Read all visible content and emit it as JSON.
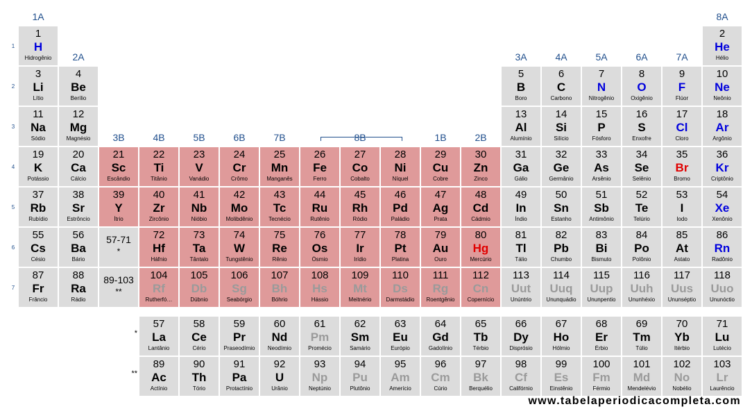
{
  "groups": [
    "1A",
    "2A",
    "3B",
    "4B",
    "5B",
    "6B",
    "7B",
    "8B",
    "1B",
    "2B",
    "3A",
    "4A",
    "5A",
    "6A",
    "7A",
    "8A"
  ],
  "periods": [
    "1",
    "2",
    "3",
    "4",
    "5",
    "6",
    "7"
  ],
  "series_markers": [
    "*",
    "**"
  ],
  "reference_cells": [
    {
      "range": "57-71",
      "marker": "*"
    },
    {
      "range": "89-103",
      "marker": "**"
    }
  ],
  "colors": {
    "transition_metal_bg": "#df9a9a",
    "cell_bg": "#dcdcdc",
    "header_text": "#1f4e8c",
    "gas": "#0000dd",
    "liquid": "#e00000",
    "synthetic": "#9a9a9a",
    "solid": "#000000"
  },
  "website": "www.tabelaperiodicacompleta.com",
  "elements": [
    {
      "n": "1",
      "s": "H",
      "name": "Hidrogênio",
      "p": "gas"
    },
    {
      "n": "2",
      "s": "He",
      "name": "Hélio",
      "p": "gas"
    },
    {
      "n": "3",
      "s": "Li",
      "name": "Lítio",
      "p": "solid"
    },
    {
      "n": "4",
      "s": "Be",
      "name": "Berílio",
      "p": "solid"
    },
    {
      "n": "5",
      "s": "B",
      "name": "Boro",
      "p": "solid"
    },
    {
      "n": "6",
      "s": "C",
      "name": "Carbono",
      "p": "solid"
    },
    {
      "n": "7",
      "s": "N",
      "name": "Nitrogênio",
      "p": "gas"
    },
    {
      "n": "8",
      "s": "O",
      "name": "Oxigênio",
      "p": "gas"
    },
    {
      "n": "9",
      "s": "F",
      "name": "Flúor",
      "p": "gas"
    },
    {
      "n": "10",
      "s": "Ne",
      "name": "Neônio",
      "p": "gas"
    },
    {
      "n": "11",
      "s": "Na",
      "name": "Sódio",
      "p": "solid"
    },
    {
      "n": "12",
      "s": "Mg",
      "name": "Magnésio",
      "p": "solid"
    },
    {
      "n": "13",
      "s": "Al",
      "name": "Alumínio",
      "p": "solid"
    },
    {
      "n": "14",
      "s": "Si",
      "name": "Silício",
      "p": "solid"
    },
    {
      "n": "15",
      "s": "P",
      "name": "Fósforo",
      "p": "solid"
    },
    {
      "n": "16",
      "s": "S",
      "name": "Enxofre",
      "p": "solid"
    },
    {
      "n": "17",
      "s": "Cl",
      "name": "Cloro",
      "p": "gas"
    },
    {
      "n": "18",
      "s": "Ar",
      "name": "Argônio",
      "p": "gas"
    },
    {
      "n": "19",
      "s": "K",
      "name": "Potássio",
      "p": "solid"
    },
    {
      "n": "20",
      "s": "Ca",
      "name": "Cálcio",
      "p": "solid"
    },
    {
      "n": "21",
      "s": "Sc",
      "name": "Escândio",
      "p": "solid"
    },
    {
      "n": "22",
      "s": "Ti",
      "name": "Titânio",
      "p": "solid"
    },
    {
      "n": "23",
      "s": "V",
      "name": "Vanádio",
      "p": "solid"
    },
    {
      "n": "24",
      "s": "Cr",
      "name": "Crômo",
      "p": "solid"
    },
    {
      "n": "25",
      "s": "Mn",
      "name": "Manganês",
      "p": "solid"
    },
    {
      "n": "26",
      "s": "Fe",
      "name": "Ferro",
      "p": "solid"
    },
    {
      "n": "27",
      "s": "Co",
      "name": "Cobalto",
      "p": "solid"
    },
    {
      "n": "28",
      "s": "Ni",
      "name": "Níquel",
      "p": "solid"
    },
    {
      "n": "29",
      "s": "Cu",
      "name": "Cobre",
      "p": "solid"
    },
    {
      "n": "30",
      "s": "Zn",
      "name": "Zinco",
      "p": "solid"
    },
    {
      "n": "31",
      "s": "Ga",
      "name": "Gálio",
      "p": "solid"
    },
    {
      "n": "32",
      "s": "Ge",
      "name": "Germânio",
      "p": "solid"
    },
    {
      "n": "33",
      "s": "As",
      "name": "Arsênio",
      "p": "solid"
    },
    {
      "n": "34",
      "s": "Se",
      "name": "Selênio",
      "p": "solid"
    },
    {
      "n": "35",
      "s": "Br",
      "name": "Bromo",
      "p": "liquid"
    },
    {
      "n": "36",
      "s": "Kr",
      "name": "Criptônio",
      "p": "gas"
    },
    {
      "n": "37",
      "s": "Rb",
      "name": "Rubídio",
      "p": "solid"
    },
    {
      "n": "38",
      "s": "Sr",
      "name": "Estrôncio",
      "p": "solid"
    },
    {
      "n": "39",
      "s": "Y",
      "name": "Ítrio",
      "p": "solid"
    },
    {
      "n": "40",
      "s": "Zr",
      "name": "Zircônio",
      "p": "solid"
    },
    {
      "n": "41",
      "s": "Nb",
      "name": "Nióbio",
      "p": "solid"
    },
    {
      "n": "42",
      "s": "Mo",
      "name": "Molibdênio",
      "p": "solid"
    },
    {
      "n": "43",
      "s": "Tc",
      "name": "Tecnécio",
      "p": "solid"
    },
    {
      "n": "44",
      "s": "Ru",
      "name": "Rutênio",
      "p": "solid"
    },
    {
      "n": "45",
      "s": "Rh",
      "name": "Ródio",
      "p": "solid"
    },
    {
      "n": "46",
      "s": "Pd",
      "name": "Paládio",
      "p": "solid"
    },
    {
      "n": "47",
      "s": "Ag",
      "name": "Prata",
      "p": "solid"
    },
    {
      "n": "48",
      "s": "Cd",
      "name": "Cádmio",
      "p": "solid"
    },
    {
      "n": "49",
      "s": "In",
      "name": "Índio",
      "p": "solid"
    },
    {
      "n": "50",
      "s": "Sn",
      "name": "Estanho",
      "p": "solid"
    },
    {
      "n": "51",
      "s": "Sb",
      "name": "Antimônio",
      "p": "solid"
    },
    {
      "n": "52",
      "s": "Te",
      "name": "Telúrio",
      "p": "solid"
    },
    {
      "n": "53",
      "s": "I",
      "name": "Iodo",
      "p": "solid"
    },
    {
      "n": "54",
      "s": "Xe",
      "name": "Xenônio",
      "p": "gas"
    },
    {
      "n": "55",
      "s": "Cs",
      "name": "Césio",
      "p": "solid"
    },
    {
      "n": "56",
      "s": "Ba",
      "name": "Bário",
      "p": "solid"
    },
    {
      "n": "72",
      "s": "Hf",
      "name": "Háfnio",
      "p": "solid"
    },
    {
      "n": "73",
      "s": "Ta",
      "name": "Tântalo",
      "p": "solid"
    },
    {
      "n": "74",
      "s": "W",
      "name": "Tungstênio",
      "p": "solid"
    },
    {
      "n": "75",
      "s": "Re",
      "name": "Rênio",
      "p": "solid"
    },
    {
      "n": "76",
      "s": "Os",
      "name": "Ósmio",
      "p": "solid"
    },
    {
      "n": "77",
      "s": "Ir",
      "name": "Irídio",
      "p": "solid"
    },
    {
      "n": "78",
      "s": "Pt",
      "name": "Platina",
      "p": "solid"
    },
    {
      "n": "79",
      "s": "Au",
      "name": "Ouro",
      "p": "solid"
    },
    {
      "n": "80",
      "s": "Hg",
      "name": "Mercúrio",
      "p": "liquid"
    },
    {
      "n": "81",
      "s": "Tl",
      "name": "Tálio",
      "p": "solid"
    },
    {
      "n": "82",
      "s": "Pb",
      "name": "Chumbo",
      "p": "solid"
    },
    {
      "n": "83",
      "s": "Bi",
      "name": "Bismuto",
      "p": "solid"
    },
    {
      "n": "84",
      "s": "Po",
      "name": "Polônio",
      "p": "solid"
    },
    {
      "n": "85",
      "s": "At",
      "name": "Astato",
      "p": "solid"
    },
    {
      "n": "86",
      "s": "Rn",
      "name": "Radônio",
      "p": "gas"
    },
    {
      "n": "87",
      "s": "Fr",
      "name": "Frâncio",
      "p": "solid"
    },
    {
      "n": "88",
      "s": "Ra",
      "name": "Rádio",
      "p": "solid"
    },
    {
      "n": "104",
      "s": "Rf",
      "name": "Rutherfó…",
      "p": "synthetic"
    },
    {
      "n": "105",
      "s": "Db",
      "name": "Dúbnio",
      "p": "synthetic"
    },
    {
      "n": "106",
      "s": "Sg",
      "name": "Seabórgio",
      "p": "synthetic"
    },
    {
      "n": "107",
      "s": "Bh",
      "name": "Bóhrio",
      "p": "synthetic"
    },
    {
      "n": "108",
      "s": "Hs",
      "name": "Hássio",
      "p": "synthetic"
    },
    {
      "n": "109",
      "s": "Mt",
      "name": "Meitnério",
      "p": "synthetic"
    },
    {
      "n": "110",
      "s": "Ds",
      "name": "Darmstádio",
      "p": "synthetic"
    },
    {
      "n": "111",
      "s": "Rg",
      "name": "Roentgênio",
      "p": "synthetic"
    },
    {
      "n": "112",
      "s": "Cn",
      "name": "Copernício",
      "p": "synthetic"
    },
    {
      "n": "113",
      "s": "Uut",
      "name": "Unúntrio",
      "p": "synthetic"
    },
    {
      "n": "114",
      "s": "Uuq",
      "name": "Ununquádio",
      "p": "synthetic"
    },
    {
      "n": "115",
      "s": "Uup",
      "name": "Ununpentio",
      "p": "synthetic"
    },
    {
      "n": "116",
      "s": "Uuh",
      "name": "Ununhéxio",
      "p": "synthetic"
    },
    {
      "n": "117",
      "s": "Uus",
      "name": "Ununséptio",
      "p": "synthetic"
    },
    {
      "n": "118",
      "s": "Uuo",
      "name": "Ununóctio",
      "p": "synthetic"
    },
    {
      "n": "57",
      "s": "La",
      "name": "Lantânio",
      "p": "solid"
    },
    {
      "n": "58",
      "s": "Ce",
      "name": "Cério",
      "p": "solid"
    },
    {
      "n": "59",
      "s": "Pr",
      "name": "Praseodímio",
      "p": "solid"
    },
    {
      "n": "60",
      "s": "Nd",
      "name": "Neodímio",
      "p": "solid"
    },
    {
      "n": "61",
      "s": "Pm",
      "name": "Promécio",
      "p": "synthetic"
    },
    {
      "n": "62",
      "s": "Sm",
      "name": "Samário",
      "p": "solid"
    },
    {
      "n": "63",
      "s": "Eu",
      "name": "Európio",
      "p": "solid"
    },
    {
      "n": "64",
      "s": "Gd",
      "name": "Gadolínio",
      "p": "solid"
    },
    {
      "n": "65",
      "s": "Tb",
      "name": "Térbio",
      "p": "solid"
    },
    {
      "n": "66",
      "s": "Dy",
      "name": "Disprósio",
      "p": "solid"
    },
    {
      "n": "67",
      "s": "Ho",
      "name": "Hólmio",
      "p": "solid"
    },
    {
      "n": "68",
      "s": "Er",
      "name": "Érbio",
      "p": "solid"
    },
    {
      "n": "69",
      "s": "Tm",
      "name": "Túlio",
      "p": "solid"
    },
    {
      "n": "70",
      "s": "Yb",
      "name": "Itérbio",
      "p": "solid"
    },
    {
      "n": "71",
      "s": "Lu",
      "name": "Lutécio",
      "p": "solid"
    },
    {
      "n": "89",
      "s": "Ac",
      "name": "Actínio",
      "p": "solid"
    },
    {
      "n": "90",
      "s": "Th",
      "name": "Tório",
      "p": "solid"
    },
    {
      "n": "91",
      "s": "Pa",
      "name": "Protactínio",
      "p": "solid"
    },
    {
      "n": "92",
      "s": "U",
      "name": "Urânio",
      "p": "solid"
    },
    {
      "n": "93",
      "s": "Np",
      "name": "Neptúnio",
      "p": "synthetic"
    },
    {
      "n": "94",
      "s": "Pu",
      "name": "Plutônio",
      "p": "synthetic"
    },
    {
      "n": "95",
      "s": "Am",
      "name": "Amerício",
      "p": "synthetic"
    },
    {
      "n": "96",
      "s": "Cm",
      "name": "Cúrio",
      "p": "synthetic"
    },
    {
      "n": "97",
      "s": "Bk",
      "name": "Berquélio",
      "p": "synthetic"
    },
    {
      "n": "98",
      "s": "Cf",
      "name": "Califórnio",
      "p": "synthetic"
    },
    {
      "n": "99",
      "s": "Es",
      "name": "Einstênio",
      "p": "synthetic"
    },
    {
      "n": "100",
      "s": "Fm",
      "name": "Férmio",
      "p": "synthetic"
    },
    {
      "n": "101",
      "s": "Md",
      "name": "Mendelévio",
      "p": "synthetic"
    },
    {
      "n": "102",
      "s": "No",
      "name": "Nobélio",
      "p": "synthetic"
    },
    {
      "n": "103",
      "s": "Lr",
      "name": "Laurêncio",
      "p": "synthetic"
    }
  ]
}
